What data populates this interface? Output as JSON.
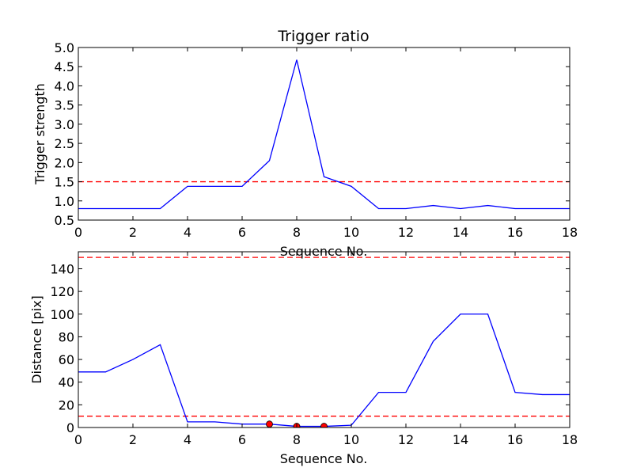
{
  "chart_data": [
    {
      "type": "line",
      "title": "Trigger ratio",
      "xlabel": "Sequence No.",
      "ylabel": "Trigger strength",
      "xlim": [
        0,
        18
      ],
      "ylim": [
        0.5,
        5.0
      ],
      "xticks": [
        "0",
        "2",
        "4",
        "6",
        "8",
        "10",
        "12",
        "14",
        "16",
        "18"
      ],
      "yticks": [
        "0.5",
        "1.0",
        "1.5",
        "2.0",
        "2.5",
        "3.0",
        "3.5",
        "4.0",
        "4.5",
        "5.0"
      ],
      "grid": false,
      "series": [
        {
          "color": "#0000ff",
          "x": [
            0,
            1,
            2,
            3,
            4,
            5,
            6,
            7,
            8,
            9,
            10,
            11,
            12,
            13,
            14,
            15,
            16,
            17,
            18
          ],
          "values": [
            0.8,
            0.8,
            0.8,
            0.8,
            1.38,
            1.38,
            1.38,
            2.05,
            4.68,
            1.63,
            1.38,
            0.8,
            0.8,
            0.88,
            0.8,
            0.88,
            0.8,
            0.8,
            0.8
          ]
        }
      ],
      "thresholds": [
        {
          "y": 1.5,
          "color": "#ff0000",
          "style": "dashed"
        }
      ]
    },
    {
      "type": "line",
      "title": "",
      "xlabel": "Sequence No.",
      "ylabel": "Distance [pix]",
      "xlim": [
        0,
        18
      ],
      "ylim": [
        0,
        155
      ],
      "xticks": [
        "0",
        "2",
        "4",
        "6",
        "8",
        "10",
        "12",
        "14",
        "16",
        "18"
      ],
      "yticks": [
        "0",
        "20",
        "40",
        "60",
        "80",
        "100",
        "120",
        "140"
      ],
      "grid": false,
      "series": [
        {
          "color": "#0000ff",
          "x": [
            0,
            1,
            2,
            3,
            4,
            5,
            6,
            7,
            8,
            9,
            10,
            11,
            12,
            13,
            14,
            15,
            16,
            17,
            18
          ],
          "values": [
            49,
            49,
            60,
            73,
            5,
            5,
            3,
            3,
            1,
            1,
            2,
            31,
            31,
            76,
            100,
            100,
            31,
            29,
            29
          ]
        }
      ],
      "markers": [
        {
          "x": 7,
          "y": 3,
          "color": "#ff0000"
        },
        {
          "x": 8,
          "y": 1,
          "color": "#ff0000"
        },
        {
          "x": 9,
          "y": 1,
          "color": "#ff0000"
        }
      ],
      "thresholds": [
        {
          "y": 150,
          "color": "#ff0000",
          "style": "dashed"
        },
        {
          "y": 10,
          "color": "#ff0000",
          "style": "dashed"
        }
      ]
    }
  ]
}
